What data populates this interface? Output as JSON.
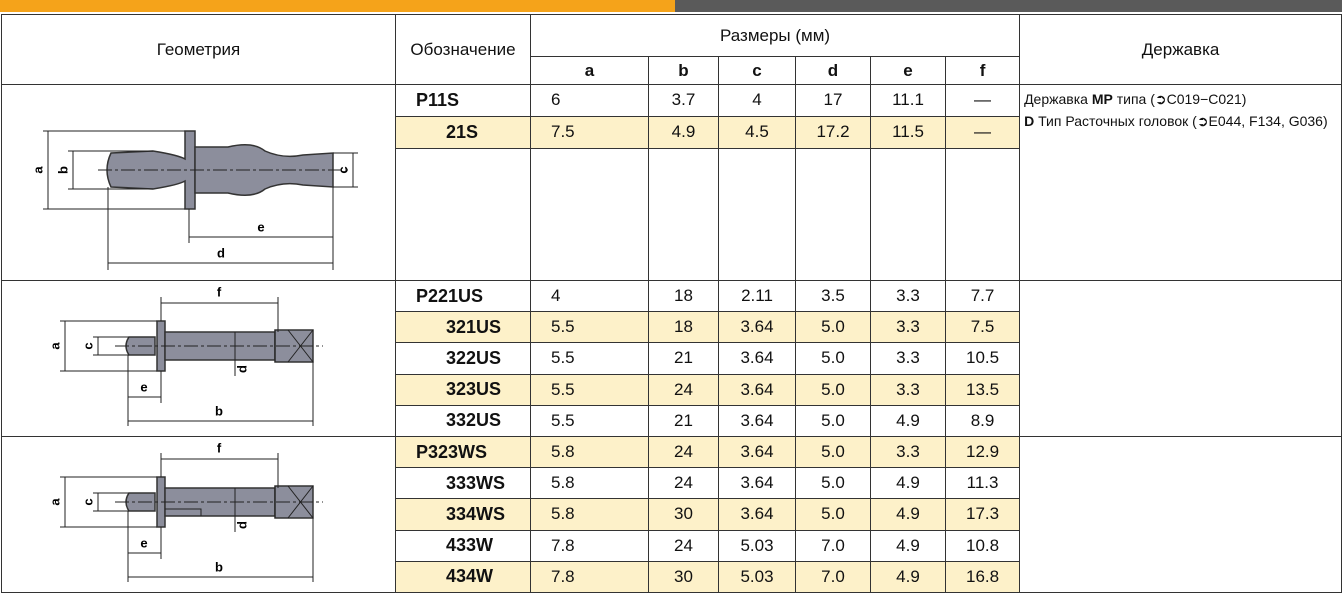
{
  "header": {
    "geometry": "Геометрия",
    "designation": "Обозначение",
    "dimensions": "Размеры (мм)",
    "columns": [
      "a",
      "b",
      "c",
      "d",
      "e",
      "f"
    ],
    "holder": "Державка"
  },
  "groups": [
    {
      "diagram_labels": [
        "a",
        "b",
        "c",
        "e",
        "d"
      ],
      "rows": [
        {
          "designation": "P11S",
          "values": [
            "6",
            "3.7",
            "4",
            "17",
            "11.1",
            "—"
          ]
        },
        {
          "designation": "21S",
          "values": [
            "7.5",
            "4.9",
            "4.5",
            "17.2",
            "11.5",
            "—"
          ]
        }
      ],
      "holder": [
        [
          {
            "t": "Державка "
          },
          {
            "b": "MP"
          },
          {
            "t": " типа (➲C019−C021)"
          }
        ],
        [
          {
            "b": "D"
          },
          {
            "t": " Тип Расточных головок (➲E044, F134, G036)"
          }
        ]
      ]
    },
    {
      "diagram_labels": [
        "f",
        "a",
        "c",
        "d",
        "e",
        "b"
      ],
      "rows": [
        {
          "designation": "P221US",
          "values": [
            "4",
            "18",
            "2.11",
            "3.5",
            "3.3",
            "7.7"
          ]
        },
        {
          "designation": "321US",
          "values": [
            "5.5",
            "18",
            "3.64",
            "5.0",
            "3.3",
            "7.5"
          ]
        },
        {
          "designation": "322US",
          "values": [
            "5.5",
            "21",
            "3.64",
            "5.0",
            "3.3",
            "10.5"
          ]
        },
        {
          "designation": "323US",
          "values": [
            "5.5",
            "24",
            "3.64",
            "5.0",
            "3.3",
            "13.5"
          ]
        },
        {
          "designation": "332US",
          "values": [
            "5.5",
            "21",
            "3.64",
            "5.0",
            "4.9",
            "8.9"
          ]
        }
      ]
    },
    {
      "diagram_labels": [
        "f",
        "a",
        "c",
        "d",
        "e",
        "b"
      ],
      "rows": [
        {
          "designation": "P323WS",
          "values": [
            "5.8",
            "24",
            "3.64",
            "5.0",
            "3.3",
            "12.9"
          ]
        },
        {
          "designation": "333WS",
          "values": [
            "5.8",
            "24",
            "3.64",
            "5.0",
            "4.9",
            "11.3"
          ]
        },
        {
          "designation": "334WS",
          "values": [
            "5.8",
            "30",
            "3.64",
            "5.0",
            "4.9",
            "17.3"
          ]
        },
        {
          "designation": "433W",
          "values": [
            "7.8",
            "24",
            "5.03",
            "7.0",
            "4.9",
            "10.8"
          ]
        },
        {
          "designation": "434W",
          "values": [
            "7.8",
            "30",
            "5.03",
            "7.0",
            "4.9",
            "16.8"
          ]
        }
      ]
    }
  ]
}
